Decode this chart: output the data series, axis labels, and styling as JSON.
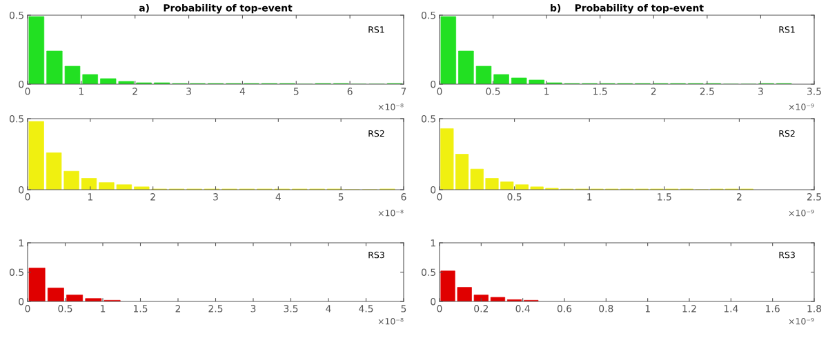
{
  "chart_data": [
    {
      "type": "histogram",
      "title": "a)    Probability of top-event",
      "color": "#22e022",
      "xlim": [
        0,
        7
      ],
      "xticks": [
        0,
        1,
        2,
        3,
        4,
        5,
        6,
        7
      ],
      "ylim": [
        0,
        0.5
      ],
      "yticks": [
        0,
        0.5
      ],
      "annotations": [
        "RS1",
        "×10⁻⁸"
      ],
      "bins": [
        0,
        0.33,
        0.67,
        1,
        1.33,
        1.67,
        2,
        2.33,
        2.67,
        3,
        3.33,
        3.67,
        4,
        4.33,
        4.67,
        5,
        5.33,
        5.67,
        6,
        6.33,
        6.67,
        7
      ],
      "values": [
        0.49,
        0.24,
        0.13,
        0.07,
        0.04,
        0.02,
        0.01,
        0.01,
        0.005,
        0.005,
        0.005,
        0.005,
        0.005,
        0.005,
        0.005,
        0,
        0.005,
        0.005,
        0,
        0,
        0.005
      ]
    },
    {
      "type": "histogram",
      "title": "b)    Probability of top-event",
      "color": "#22e022",
      "xlim": [
        0,
        3.5
      ],
      "xticks": [
        0,
        0.5,
        1,
        1.5,
        2,
        2.5,
        3,
        3.5
      ],
      "ylim": [
        0,
        0.5
      ],
      "yticks": [
        0,
        0.5
      ],
      "annotations": [
        "RS1",
        "×10⁻⁹"
      ],
      "bins": [
        0,
        0.165,
        0.33,
        0.495,
        0.66,
        0.825,
        0.99,
        1.155,
        1.32,
        1.485,
        1.65,
        1.815,
        1.98,
        2.145,
        2.31,
        2.475,
        2.64,
        2.805,
        2.97,
        3.135,
        3.3
      ],
      "values": [
        0.49,
        0.24,
        0.13,
        0.07,
        0.045,
        0.03,
        0.01,
        0.005,
        0.005,
        0.005,
        0.005,
        0.005,
        0.005,
        0.005,
        0.005,
        0.005,
        0,
        0,
        0.005,
        0.005
      ]
    },
    {
      "type": "histogram",
      "color": "#f0f010",
      "xlim": [
        0,
        6
      ],
      "xticks": [
        0,
        1,
        2,
        3,
        4,
        5,
        6
      ],
      "ylim": [
        0,
        0.5
      ],
      "yticks": [
        0,
        0.5
      ],
      "annotations": [
        "RS2",
        "×10⁻⁸"
      ],
      "bins": [
        0,
        0.28,
        0.56,
        0.84,
        1.12,
        1.4,
        1.68,
        1.96,
        2.24,
        2.52,
        2.8,
        3.08,
        3.36,
        3.64,
        3.92,
        4.2,
        4.48,
        4.76,
        5.04,
        5.32,
        5.6,
        5.88
      ],
      "values": [
        0.48,
        0.26,
        0.13,
        0.08,
        0.05,
        0.035,
        0.02,
        0.005,
        0.005,
        0.005,
        0.005,
        0.005,
        0.005,
        0.005,
        0.005,
        0.005,
        0.005,
        0.005,
        0,
        0,
        0.005
      ]
    },
    {
      "type": "histogram",
      "color": "#f0f010",
      "xlim": [
        0,
        2.5
      ],
      "xticks": [
        0,
        0.5,
        1,
        1.5,
        2,
        2.5
      ],
      "ylim": [
        0,
        0.5
      ],
      "yticks": [
        0,
        0.5
      ],
      "annotations": [
        "RS2",
        "×10⁻⁹"
      ],
      "bins": [
        0,
        0.1,
        0.2,
        0.3,
        0.4,
        0.5,
        0.6,
        0.7,
        0.8,
        0.9,
        1,
        1.1,
        1.2,
        1.3,
        1.4,
        1.5,
        1.6,
        1.7,
        1.8,
        1.9,
        2,
        2.1
      ],
      "values": [
        0.43,
        0.25,
        0.145,
        0.08,
        0.055,
        0.035,
        0.02,
        0.01,
        0.005,
        0.005,
        0.005,
        0.005,
        0.005,
        0.005,
        0.005,
        0.005,
        0.005,
        0,
        0.005,
        0.005,
        0.005
      ]
    },
    {
      "type": "histogram",
      "color": "#e00000",
      "xlim": [
        0,
        5
      ],
      "xticks": [
        0,
        0.5,
        1,
        1.5,
        2,
        2.5,
        3,
        3.5,
        4,
        4.5,
        5
      ],
      "ylim": [
        0,
        1
      ],
      "yticks": [
        0,
        0.5,
        1
      ],
      "annotations": [
        "RS3",
        "×10⁻⁸"
      ],
      "bins": [
        0,
        0.25,
        0.5,
        0.75,
        1,
        1.25
      ],
      "values": [
        0.57,
        0.23,
        0.11,
        0.05,
        0.02
      ]
    },
    {
      "type": "histogram",
      "color": "#e00000",
      "xlim": [
        0,
        1.8
      ],
      "xticks": [
        0,
        0.2,
        0.4,
        0.6,
        0.8,
        1,
        1.2,
        1.4,
        1.6,
        1.8
      ],
      "ylim": [
        0,
        1
      ],
      "yticks": [
        0,
        0.5,
        1
      ],
      "annotations": [
        "RS3",
        "×10⁻⁹"
      ],
      "bins": [
        0,
        0.08,
        0.16,
        0.24,
        0.32,
        0.4,
        0.48
      ],
      "values": [
        0.52,
        0.24,
        0.11,
        0.07,
        0.03,
        0.02
      ]
    }
  ]
}
